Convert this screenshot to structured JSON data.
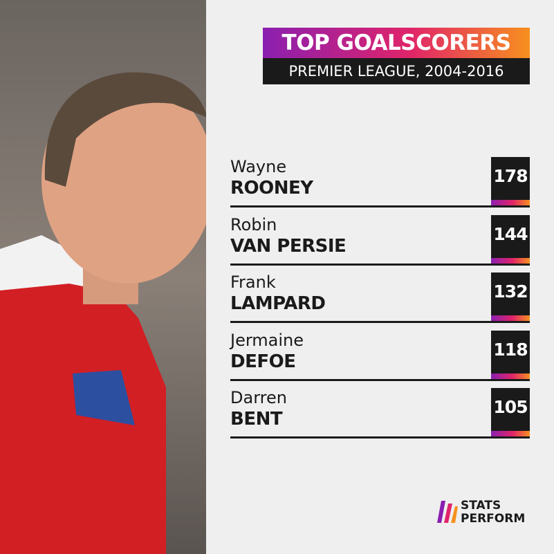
{
  "header": {
    "title": "TOP GOALSCORERS",
    "subtitle": "PREMIER LEAGUE, 2004-2016"
  },
  "players": [
    {
      "first_name": "Wayne",
      "last_name": "ROONEY",
      "goals": 178
    },
    {
      "first_name": "Robin",
      "last_name": "VAN PERSIE",
      "goals": 144
    },
    {
      "first_name": "Frank",
      "last_name": "LAMPARD",
      "goals": 132
    },
    {
      "first_name": "Jermaine",
      "last_name": "DEFOE",
      "goals": 118
    },
    {
      "first_name": "Darren",
      "last_name": "BENT",
      "goals": 105
    }
  ],
  "logo": {
    "line1": "STATS",
    "line2": "PERFORM"
  }
}
